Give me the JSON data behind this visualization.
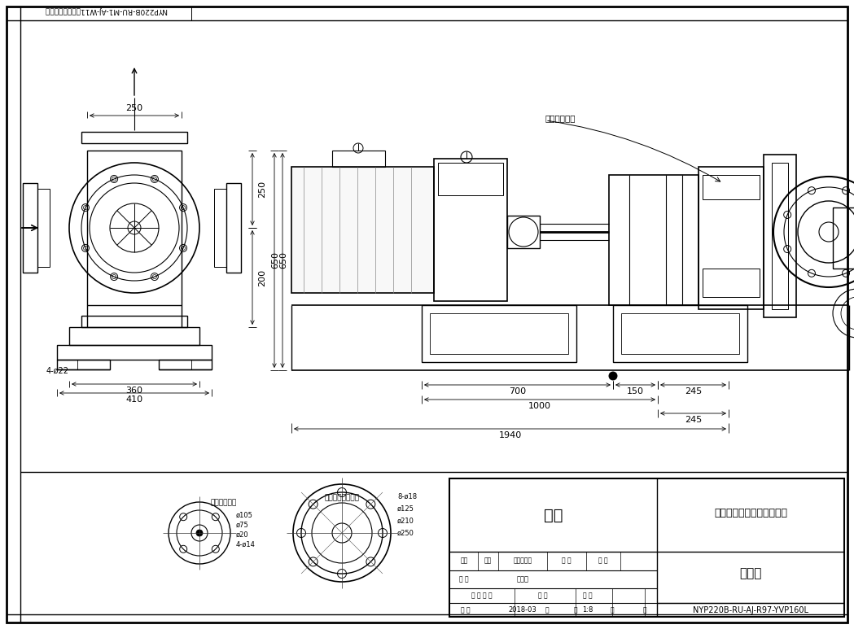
{
  "bg_color": "#ffffff",
  "line_color": "#000000",
  "company": "河北远东泵业制造有限公司",
  "drawing_title": "机组图",
  "component": "组件",
  "scale": "1:8",
  "drawing_no": "NYP220B-RU-AJ-R97-YVP160L",
  "designer": "傅庆文",
  "date": "2018-03",
  "header_text": "NYP220B-RU-M1-AJ-W11转子泵整机尺寸图",
  "dim_250h": "250",
  "dim_250v": "250",
  "dim_200": "200",
  "dim_650": "650",
  "dim_360": "360",
  "dim_410": "410",
  "dim_4phi22": "4-ø22",
  "dim_700": "700",
  "dim_150": "150",
  "dim_245r": "245",
  "dim_1000": "1000",
  "dim_245b": "245",
  "dim_1940": "1940",
  "label_port": "保温介质接口",
  "flange1_title": "热媒法兰尺寸",
  "flange1_dims": [
    "ø105",
    "ø75",
    "ø20",
    "4-ø14"
  ],
  "flange2_title": "泵进出口法兰尺寸",
  "flange2_dims": [
    "8-ø18",
    "ø125",
    "ø210",
    "ø250"
  ]
}
